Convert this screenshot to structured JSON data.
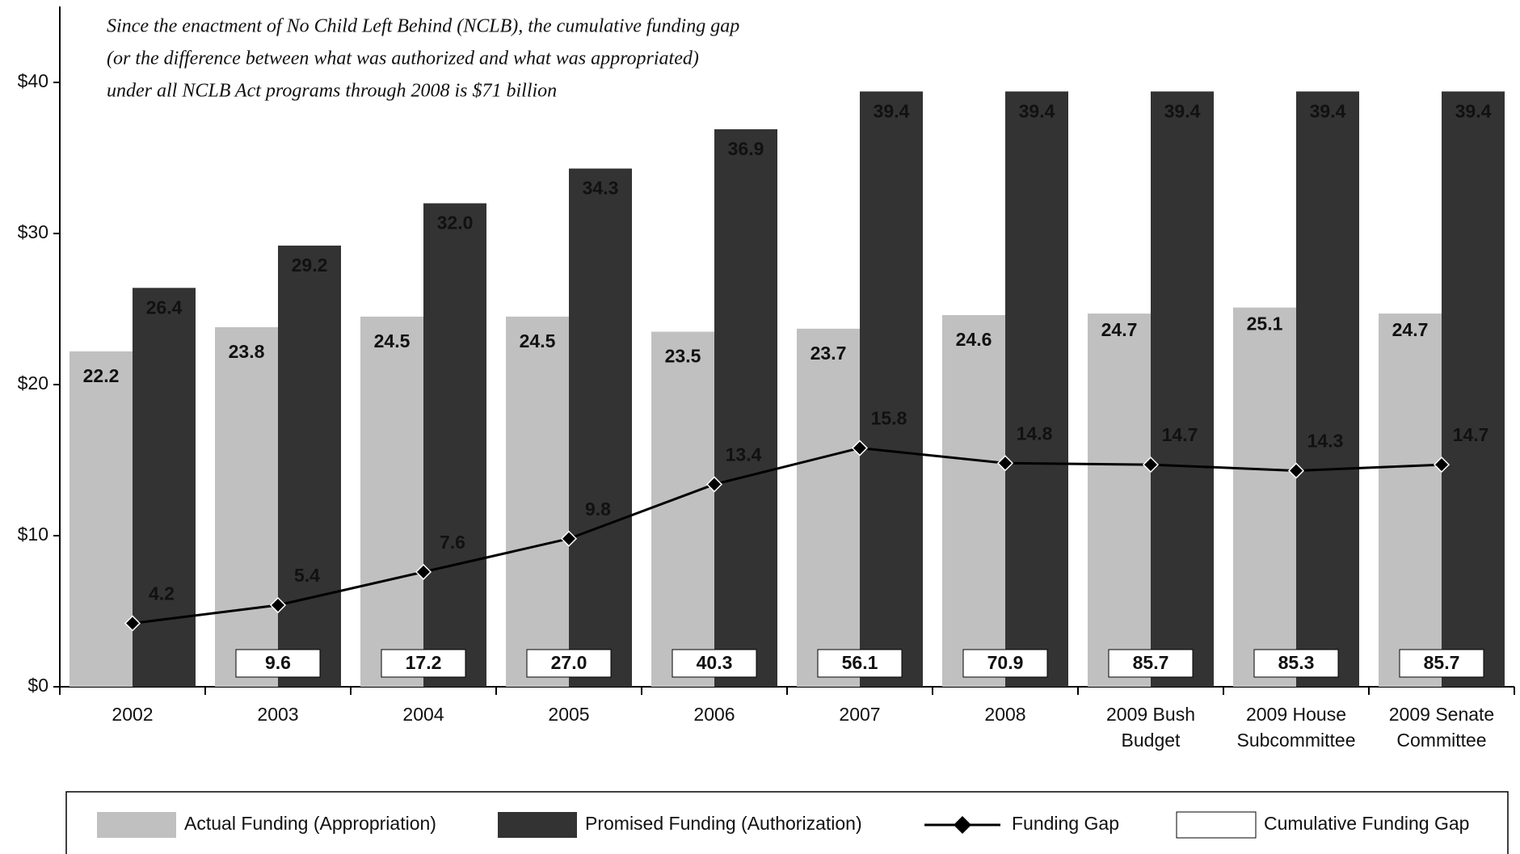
{
  "chart_data": {
    "type": "bar",
    "annotation": [
      "Since the enactment of No Child Left Behind (NCLB), the cumulative funding gap",
      "(or the difference between what was authorized and what was appropriated)",
      "under all NCLB Act programs through 2008 is $71 billion"
    ],
    "categories": [
      "2002",
      "2003",
      "2004",
      "2005",
      "2006",
      "2007",
      "2008",
      "2009 Bush Budget",
      "2009 House Subcommittee",
      "2009 Senate Committee"
    ],
    "series": [
      {
        "name": "Actual Funding (Appropriation)",
        "color": "#c0c0c0",
        "values": [
          22.2,
          23.8,
          24.5,
          24.5,
          23.5,
          23.7,
          24.6,
          24.7,
          25.1,
          24.7
        ]
      },
      {
        "name": "Promised Funding (Authorization)",
        "color": "#333333",
        "values": [
          26.4,
          29.2,
          32.0,
          34.3,
          36.9,
          39.4,
          39.4,
          39.4,
          39.4,
          39.4
        ],
        "value_labels": [
          "26.4",
          "29.2",
          "32.0",
          "34.3",
          "36.9",
          "39.4",
          "39.4",
          "39.4",
          "39.4",
          "39.4"
        ]
      },
      {
        "name": "Funding Gap",
        "color": "#000000",
        "type": "line",
        "values": [
          4.2,
          5.4,
          7.6,
          9.8,
          13.4,
          15.8,
          14.8,
          14.7,
          14.3,
          14.7
        ]
      },
      {
        "name": "Cumulative Funding Gap",
        "color": "#ffffff",
        "type": "box",
        "values": [
          null,
          9.6,
          17.2,
          27.0,
          40.3,
          56.1,
          70.9,
          85.7,
          85.3,
          85.7
        ],
        "value_labels": [
          null,
          "9.6",
          "17.2",
          "27.0",
          "40.3",
          "56.1",
          "70.9",
          "85.7",
          "85.3",
          "85.7"
        ]
      }
    ],
    "ylim": [
      0,
      40
    ],
    "yticks": [
      {
        "value": 0,
        "label": "$0"
      },
      {
        "value": 10,
        "label": "$10"
      },
      {
        "value": 20,
        "label": "$20"
      },
      {
        "value": 30,
        "label": "$30"
      },
      {
        "value": 40,
        "label": "$40"
      }
    ],
    "legend": "bottom"
  }
}
